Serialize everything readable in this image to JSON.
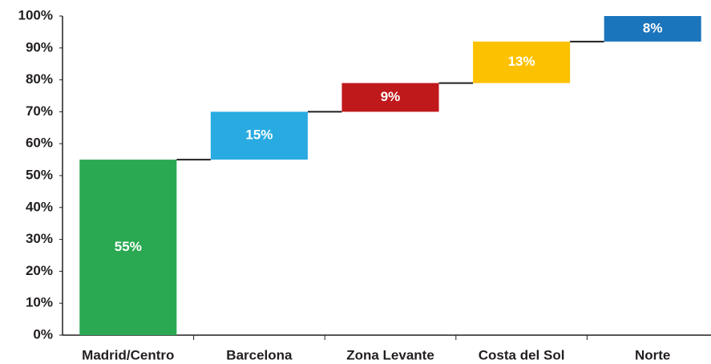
{
  "chart_data": {
    "type": "waterfall",
    "categories": [
      "Madrid/Centro",
      "Barcelona",
      "Zona Levante",
      "Costa del Sol",
      "Norte"
    ],
    "values": [
      55,
      15,
      9,
      13,
      8
    ],
    "value_labels": [
      "55%",
      "15%",
      "9%",
      "13%",
      "8%"
    ],
    "colors": [
      "#2aa952",
      "#29abe2",
      "#c0191c",
      "#fcc100",
      "#1b75bc"
    ],
    "ylim": [
      0,
      100
    ],
    "yticks": [
      {
        "value": 0,
        "label": "0%"
      },
      {
        "value": 10,
        "label": "10%"
      },
      {
        "value": 20,
        "label": "20%"
      },
      {
        "value": 30,
        "label": "30%"
      },
      {
        "value": 40,
        "label": "40%"
      },
      {
        "value": 50,
        "label": "50%"
      },
      {
        "value": 60,
        "label": "60%"
      },
      {
        "value": 70,
        "label": "70%"
      },
      {
        "value": 80,
        "label": "80%"
      },
      {
        "value": 90,
        "label": "90%"
      },
      {
        "value": 100,
        "label": "100%"
      }
    ]
  }
}
